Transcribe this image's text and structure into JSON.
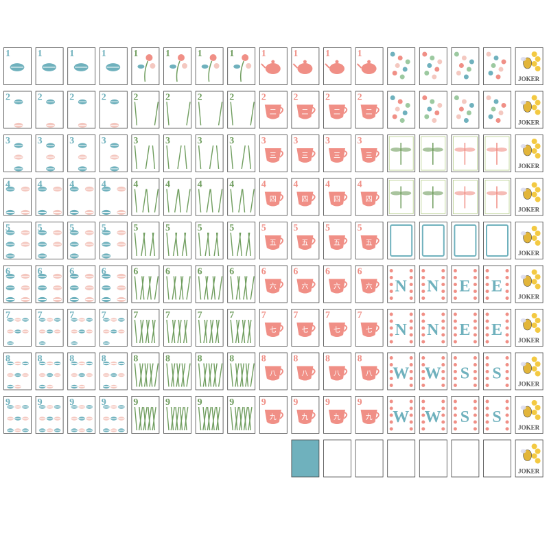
{
  "ranks": [
    "1",
    "2",
    "3",
    "4",
    "5",
    "6",
    "7",
    "8",
    "9"
  ],
  "cup_characters": [
    "二",
    "三",
    "四",
    "五",
    "六",
    "七",
    "八",
    "九"
  ],
  "winds": [
    [
      "N",
      "N",
      "E",
      "E"
    ],
    [
      "N",
      "N",
      "E",
      "E"
    ],
    [
      "W",
      "W",
      "S",
      "S"
    ],
    [
      "W",
      "W",
      "S",
      "S"
    ]
  ],
  "joker_label": "JOKER"
}
